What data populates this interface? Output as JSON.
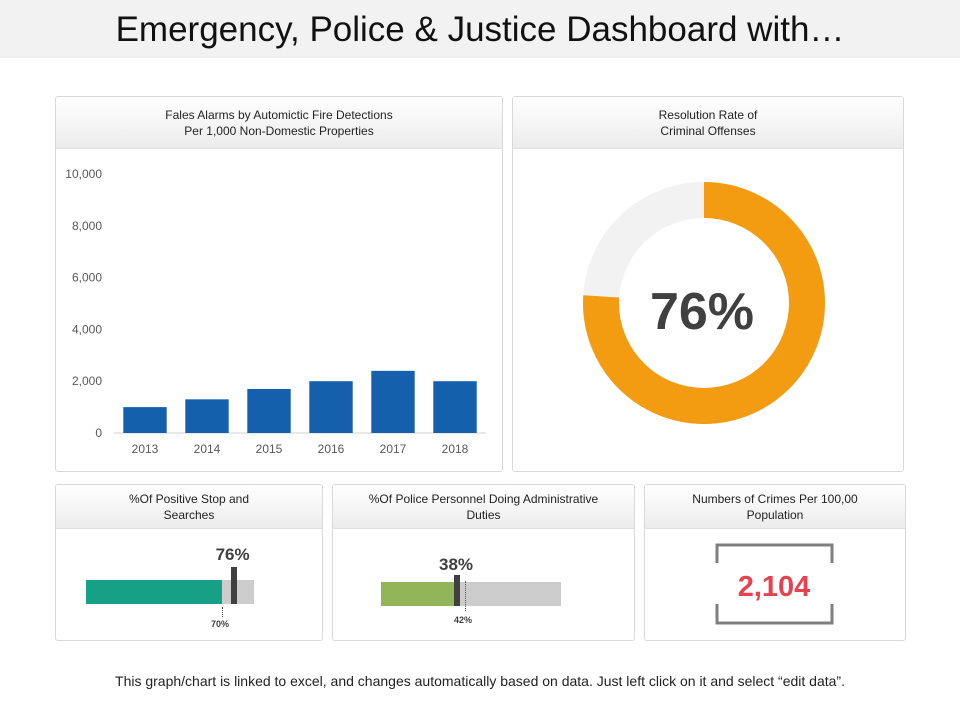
{
  "page": {
    "title": "Emergency, Police & Justice Dashboard with…",
    "footer": "This graph/chart is linked to excel, and changes automatically based on data. Just left click on it and select “edit data”."
  },
  "panels": {
    "false_alarms": {
      "title_line1": "Fales Alarms by Automictic Fire Detections",
      "title_line2": "Per 1,000 Non-Domestic Properties"
    },
    "resolution": {
      "title_line1": "Resolution Rate of",
      "title_line2": "Criminal Offenses"
    },
    "stop_search": {
      "title_line1": "%Of Positive Stop and",
      "title_line2": "Searches"
    },
    "admin_duties": {
      "title_line1": "%Of Police Personnel Doing Administrative",
      "title_line2": "Duties"
    },
    "crimes": {
      "title_line1": "Numbers of Crimes Per 100,00",
      "title_line2": "Population"
    }
  },
  "chart_data": [
    {
      "type": "bar",
      "title": "Fales Alarms by Automictic Fire Detections Per 1,000 Non-Domestic Properties",
      "categories": [
        "2013",
        "2014",
        "2015",
        "2016",
        "2017",
        "2018"
      ],
      "values": [
        1000,
        1300,
        1700,
        2000,
        2400,
        2000
      ],
      "ylim": [
        0,
        10000
      ],
      "yticks": [
        0,
        2000,
        4000,
        6000,
        8000,
        10000
      ],
      "ytick_labels": [
        "0",
        "2,000",
        "4,000",
        "6,000",
        "8,000",
        "10,000"
      ],
      "color": "#1560ad"
    },
    {
      "type": "pie",
      "title": "Resolution Rate of Criminal Offenses",
      "value": 76,
      "label": "76%",
      "colors": {
        "fill": "#f39c12",
        "rest": "#f2f2f2"
      }
    },
    {
      "type": "bar",
      "title": "%Of Positive Stop and Searches",
      "value": 76,
      "value_label": "76%",
      "target": 70,
      "target_label": "70%",
      "color": "#16a085"
    },
    {
      "type": "bar",
      "title": "%Of Police Personnel Doing Administrative Duties",
      "value": 38,
      "value_label": "38%",
      "target": 42,
      "target_label": "42%",
      "color": "#92b55a"
    }
  ],
  "kpi": {
    "crimes_value": "2,104",
    "color": "#e8424e"
  }
}
